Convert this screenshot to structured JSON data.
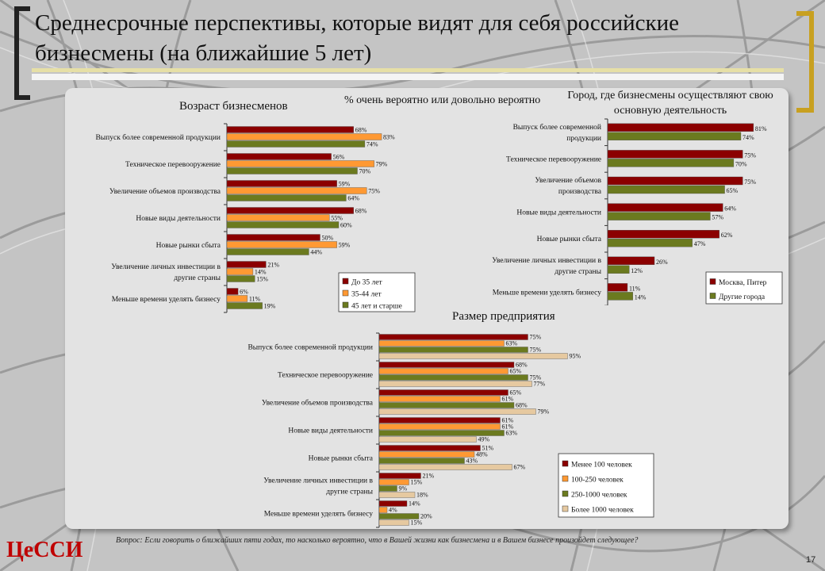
{
  "title": "Среднесрочные перспективы, которые видят для себя российские бизнесмены (на ближайшие 5 лет)",
  "subtitle": "% очень вероятно или довольно вероятно",
  "footnote": "Вопрос: Если говорить о ближайших пяти годах, то насколько вероятно, что в Вашей жизни как бизнесмена и в Вашем бизнесе произойдет следующее?",
  "logo": "ЦеССИ",
  "page_number": "17",
  "colors": {
    "dark_red": "#8b0000",
    "orange": "#ff9933",
    "olive": "#6b7a1f",
    "tan": "#e6c9a0",
    "accent_gold": "#c8a020",
    "accent_dark": "#222222"
  },
  "chart_data": [
    {
      "type": "bar",
      "orientation": "horizontal",
      "title": "Возраст бизнесменов",
      "categories": [
        "Выпуск более современной продукции",
        "Техническое перевооружение",
        "Увеличение объемов производства",
        "Новые виды деятельности",
        "Новые рынки сбыта",
        "Увеличение личных инвестиции в другие страны",
        "Меньше времени уделять бизнесу"
      ],
      "series": [
        {
          "name": "До 35 лет",
          "values": [
            68,
            56,
            59,
            68,
            50,
            21,
            6
          ]
        },
        {
          "name": "35-44 лет",
          "values": [
            83,
            79,
            75,
            55,
            59,
            14,
            11
          ]
        },
        {
          "name": "45 лет и старше",
          "values": [
            74,
            70,
            64,
            60,
            44,
            15,
            19
          ]
        }
      ],
      "value_suffix": "%",
      "legend": "bottom-right"
    },
    {
      "type": "bar",
      "orientation": "horizontal",
      "title": "Город, где бизнесмены осуществляют свою основную деятельность",
      "categories": [
        "Выпуск более современной продукции",
        "Техническое перевооружение",
        "Увеличение объемов производства",
        "Новые виды деятельности",
        "Новые рынки сбыта",
        "Увеличение личных инвестиции в другие страны",
        "Меньше времени уделять бизнесу"
      ],
      "series": [
        {
          "name": "Москва, Питер",
          "values": [
            81,
            75,
            75,
            64,
            62,
            26,
            11
          ]
        },
        {
          "name": "Другие города",
          "values": [
            74,
            70,
            65,
            57,
            47,
            12,
            14
          ]
        }
      ],
      "value_suffix": "%",
      "legend": "bottom-right"
    },
    {
      "type": "bar",
      "orientation": "horizontal",
      "title": "Размер предприятия",
      "categories": [
        "Выпуск более современной продукции",
        "Техническое перевооружение",
        "Увеличение объемов производства",
        "Новые виды деятельности",
        "Новые рынки сбыта",
        "Увеличение личных инвестиции в другие страны",
        "Меньше времени уделять бизнесу"
      ],
      "series": [
        {
          "name": "Менее 100 человек",
          "values": [
            75,
            68,
            65,
            61,
            51,
            21,
            14
          ]
        },
        {
          "name": "100-250 человек",
          "values": [
            63,
            65,
            61,
            61,
            48,
            15,
            4
          ]
        },
        {
          "name": "250-1000 человек",
          "values": [
            75,
            75,
            68,
            63,
            43,
            9,
            20
          ]
        },
        {
          "name": "Более 1000 человек",
          "values": [
            95,
            77,
            79,
            49,
            67,
            18,
            15
          ]
        }
      ],
      "value_suffix": "%",
      "legend": "bottom-right"
    }
  ]
}
